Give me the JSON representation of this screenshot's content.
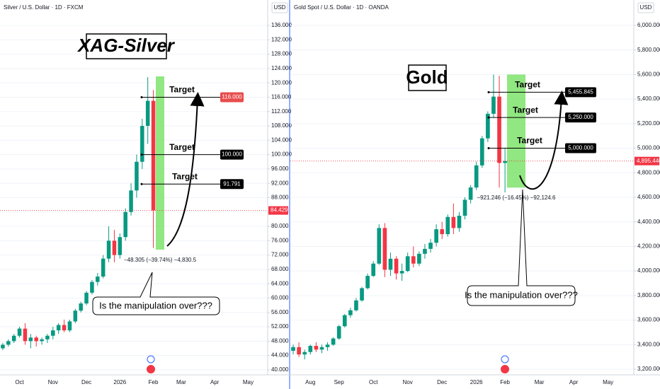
{
  "chart_data": [
    {
      "type": "candlestick",
      "title": "Silver / U.S. Dollar · 1D · FXCM",
      "currency": "USD",
      "annotation_title": "XAG-Silver",
      "callout": "Is the manipulation over???",
      "categories": [
        null,
        null,
        null,
        "Oct",
        null,
        null,
        null,
        null,
        null,
        "Nov",
        null,
        null,
        null,
        null,
        null,
        "Dec",
        null,
        null,
        null,
        null,
        null,
        "2026",
        null,
        null,
        null,
        null,
        null,
        "Feb",
        null,
        null,
        null,
        null,
        "Mar",
        null,
        null,
        null,
        null,
        null,
        "Apr",
        null,
        null,
        null,
        null,
        null,
        "May",
        null,
        null,
        null
      ],
      "candles": [
        [
          46,
          47.5,
          45.5,
          47
        ],
        [
          47,
          48.5,
          46.5,
          48
        ],
        [
          48,
          50,
          47.5,
          49.5
        ],
        [
          49.5,
          52,
          49,
          51.5
        ],
        [
          51.5,
          53,
          47,
          48
        ],
        [
          48,
          50,
          46,
          49
        ],
        [
          49,
          49.5,
          46.5,
          48
        ],
        [
          48,
          49,
          47,
          48.5
        ],
        [
          48.5,
          50,
          47.5,
          49.5
        ],
        [
          49.5,
          52,
          48.5,
          51
        ],
        [
          51,
          53,
          50,
          52.5
        ],
        [
          52.5,
          54,
          50.5,
          51
        ],
        [
          51,
          54,
          50.5,
          53.5
        ],
        [
          53.5,
          57,
          53,
          56.5
        ],
        [
          56.5,
          59,
          56,
          58.5
        ],
        [
          58.5,
          62,
          58,
          61.5
        ],
        [
          61.5,
          65,
          61,
          64.5
        ],
        [
          64.5,
          67,
          63.5,
          66
        ],
        [
          66,
          72,
          65.5,
          71
        ],
        [
          71,
          80,
          70,
          76
        ],
        [
          76,
          79,
          70,
          72
        ],
        [
          72,
          78,
          71,
          77
        ],
        [
          77,
          85,
          76,
          84
        ],
        [
          84,
          92,
          83,
          90
        ],
        [
          90,
          100,
          88,
          98
        ],
        [
          98,
          110,
          96,
          108
        ],
        [
          108,
          121.6,
          103,
          115
        ],
        [
          115,
          118,
          74,
          84.429
        ],
        null,
        null,
        null,
        null,
        null,
        null,
        null,
        null,
        null,
        null,
        null,
        null,
        null,
        null,
        null,
        null,
        null,
        null,
        null,
        null,
        null,
        null
      ],
      "up_color": "#089981",
      "down_color": "#f23645",
      "ylim": [
        38.6,
        143.1
      ],
      "yticks": [
        {
          "value": 40,
          "label": "40.000"
        },
        {
          "value": 44,
          "label": "44.000"
        },
        {
          "value": 48,
          "label": "48.000"
        },
        {
          "value": 52,
          "label": "52.000"
        },
        {
          "value": 56,
          "label": "56.000"
        },
        {
          "value": 60,
          "label": "60.000"
        },
        {
          "value": 64,
          "label": "64.000"
        },
        {
          "value": 68,
          "label": "68.000"
        },
        {
          "value": 72,
          "label": "72.000"
        },
        {
          "value": 76,
          "label": "76.000"
        },
        {
          "value": 80,
          "label": "80.000"
        },
        {
          "value": 84,
          "label": "84.000"
        },
        {
          "value": 88,
          "label": "88.000"
        },
        {
          "value": 92,
          "label": "92.000"
        },
        {
          "value": 96,
          "label": "96.000"
        },
        {
          "value": 100,
          "label": "100.000"
        },
        {
          "value": 104,
          "label": "104.000"
        },
        {
          "value": 108,
          "label": "108.000"
        },
        {
          "value": 112,
          "label": "112.000"
        },
        {
          "value": 116,
          "label": "116.000"
        },
        {
          "value": 120,
          "label": "120.000"
        },
        {
          "value": 124,
          "label": "124.000"
        },
        {
          "value": 128,
          "label": "128.000"
        },
        {
          "value": 132,
          "label": "132.000"
        },
        {
          "value": 136,
          "label": "136.000"
        }
      ],
      "last_price": {
        "value": 84.429,
        "label": "84.429",
        "color": "#f23645"
      },
      "measure": {
        "from": 121.8,
        "to": 73.5,
        "label": "−48.305 (−39.74%) −4,830.5",
        "color": "#7ee36b"
      },
      "targets": [
        {
          "text": "Target",
          "value": 116,
          "label": "116.000",
          "color": "#e84c4c"
        },
        {
          "text": "Target",
          "value": 100,
          "label": "100.000",
          "color": "#000000"
        },
        {
          "text": "Target",
          "value": 91.791,
          "label": "91.791",
          "color": "#000000"
        }
      ]
    },
    {
      "type": "candlestick",
      "title": "Gold Spot / U.S. Dollar · 1D · OANDA",
      "currency": "USD",
      "annotation_title": "Gold",
      "callout": "Is the manipulation over???",
      "categories": [
        null,
        null,
        null,
        "Aug",
        null,
        null,
        null,
        null,
        "Sep",
        null,
        null,
        null,
        null,
        null,
        "Oct",
        null,
        null,
        null,
        null,
        null,
        "Nov",
        null,
        null,
        null,
        null,
        null,
        "Dec",
        null,
        null,
        null,
        null,
        null,
        "2026",
        null,
        null,
        null,
        null,
        "Feb",
        null,
        null,
        null,
        null,
        null,
        "Mar",
        null,
        null,
        null,
        null,
        null,
        "Apr",
        null,
        null,
        null,
        null,
        null,
        "May",
        null,
        null,
        null,
        null
      ],
      "candles": [
        [
          3350,
          3400,
          3320,
          3380
        ],
        [
          3380,
          3420,
          3300,
          3320
        ],
        [
          3320,
          3360,
          3280,
          3340
        ],
        [
          3340,
          3400,
          3320,
          3390
        ],
        [
          3390,
          3420,
          3340,
          3360
        ],
        [
          3360,
          3400,
          3330,
          3380
        ],
        [
          3380,
          3420,
          3350,
          3400
        ],
        [
          3400,
          3460,
          3390,
          3450
        ],
        [
          3450,
          3560,
          3440,
          3550
        ],
        [
          3550,
          3650,
          3540,
          3640
        ],
        [
          3640,
          3700,
          3620,
          3680
        ],
        [
          3680,
          3780,
          3670,
          3760
        ],
        [
          3760,
          3870,
          3750,
          3860
        ],
        [
          3860,
          3980,
          3850,
          3960
        ],
        [
          3960,
          4080,
          3950,
          4060
        ],
        [
          4060,
          4380,
          4050,
          4350
        ],
        [
          4350,
          4390,
          3950,
          4010
        ],
        [
          4010,
          4150,
          3960,
          4100
        ],
        [
          4100,
          4120,
          3930,
          3980
        ],
        [
          3980,
          4060,
          3920,
          4000
        ],
        [
          4000,
          4150,
          3990,
          4120
        ],
        [
          4120,
          4200,
          4030,
          4060
        ],
        [
          4060,
          4160,
          4040,
          4140
        ],
        [
          4140,
          4220,
          4100,
          4180
        ],
        [
          4180,
          4260,
          4150,
          4230
        ],
        [
          4230,
          4380,
          4200,
          4340
        ],
        [
          4340,
          4400,
          4260,
          4300
        ],
        [
          4300,
          4460,
          4280,
          4440
        ],
        [
          4440,
          4550,
          4300,
          4350
        ],
        [
          4350,
          4480,
          4320,
          4450
        ],
        [
          4450,
          4600,
          4420,
          4580
        ],
        [
          4580,
          4700,
          4550,
          4680
        ],
        [
          4680,
          4890,
          4660,
          4860
        ],
        [
          4860,
          5100,
          4840,
          5080
        ],
        [
          5080,
          5300,
          5050,
          5280
        ],
        [
          5280,
          5600,
          5250,
          5420
        ],
        [
          5420,
          5590,
          4680,
          4880
        ],
        [
          4880,
          5000,
          4640,
          4895.44
        ],
        null,
        null,
        null,
        null,
        null,
        null,
        null,
        null,
        null,
        null,
        null,
        null,
        null,
        null,
        null,
        null,
        null,
        null,
        null,
        null,
        null,
        null
      ],
      "up_color": "#089981",
      "down_color": "#f23645",
      "ylim": [
        3154,
        6207
      ],
      "yticks": [
        {
          "value": 3200,
          "label": "3,200.000"
        },
        {
          "value": 3400,
          "label": "3,400.000"
        },
        {
          "value": 3600,
          "label": "3,600.000"
        },
        {
          "value": 3800,
          "label": "3,800.000"
        },
        {
          "value": 4000,
          "label": "4,000.000"
        },
        {
          "value": 4200,
          "label": "4,200.000"
        },
        {
          "value": 4400,
          "label": "4,400.000"
        },
        {
          "value": 4600,
          "label": "4,600.000"
        },
        {
          "value": 4800,
          "label": "4,800.000"
        },
        {
          "value": 5000,
          "label": "5,000.000"
        },
        {
          "value": 5200,
          "label": "5,200.000"
        },
        {
          "value": 5400,
          "label": "5,400.000"
        },
        {
          "value": 5600,
          "label": "5,600.000"
        },
        {
          "value": 5800,
          "label": "5,800.000"
        },
        {
          "value": 6000,
          "label": "6,000.000"
        }
      ],
      "last_price": {
        "value": 4895.44,
        "label": "4,895.440",
        "color": "#f23645"
      },
      "measure": {
        "from": 5600,
        "to": 4679,
        "label": "−921.246 (−16.45%) −92,124.6",
        "color": "#7ee36b"
      },
      "targets": [
        {
          "text": "Target",
          "value": 5455.845,
          "label": "5,455.845",
          "color": "#000000"
        },
        {
          "text": "Target",
          "value": 5250,
          "label": "5,250.000",
          "color": "#000000"
        },
        {
          "text": "Target",
          "value": 5000,
          "label": "5,000.000",
          "color": "#000000"
        }
      ]
    }
  ]
}
